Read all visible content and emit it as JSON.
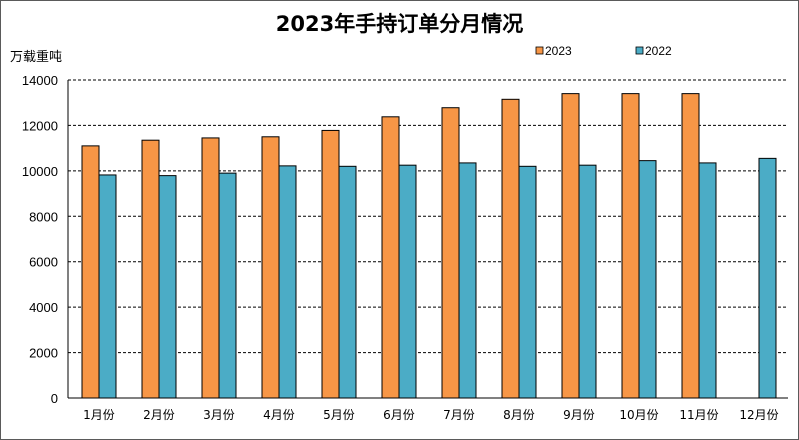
{
  "chart_data": {
    "type": "bar",
    "title": "2023年手持订单分月情况",
    "ylabel": "万载重吨",
    "categories": [
      "1月份",
      "2月份",
      "3月份",
      "4月份",
      "5月份",
      "6月份",
      "7月份",
      "8月份",
      "9月份",
      "10月份",
      "11月份",
      "12月份"
    ],
    "series": [
      {
        "name": "2023",
        "color": "#f79646",
        "values": [
          11100,
          11350,
          11450,
          11500,
          11780,
          12380,
          12780,
          13150,
          13400,
          13400,
          13400,
          null
        ]
      },
      {
        "name": "2022",
        "color": "#4bacc6",
        "values": [
          9820,
          9790,
          9900,
          10220,
          10200,
          10250,
          10350,
          10200,
          10250,
          10450,
          10350,
          10550
        ]
      }
    ],
    "ylim": [
      0,
      14000
    ],
    "yticks": [
      0,
      2000,
      4000,
      6000,
      8000,
      10000,
      12000,
      14000
    ],
    "grid": true,
    "legend": "top-right"
  }
}
